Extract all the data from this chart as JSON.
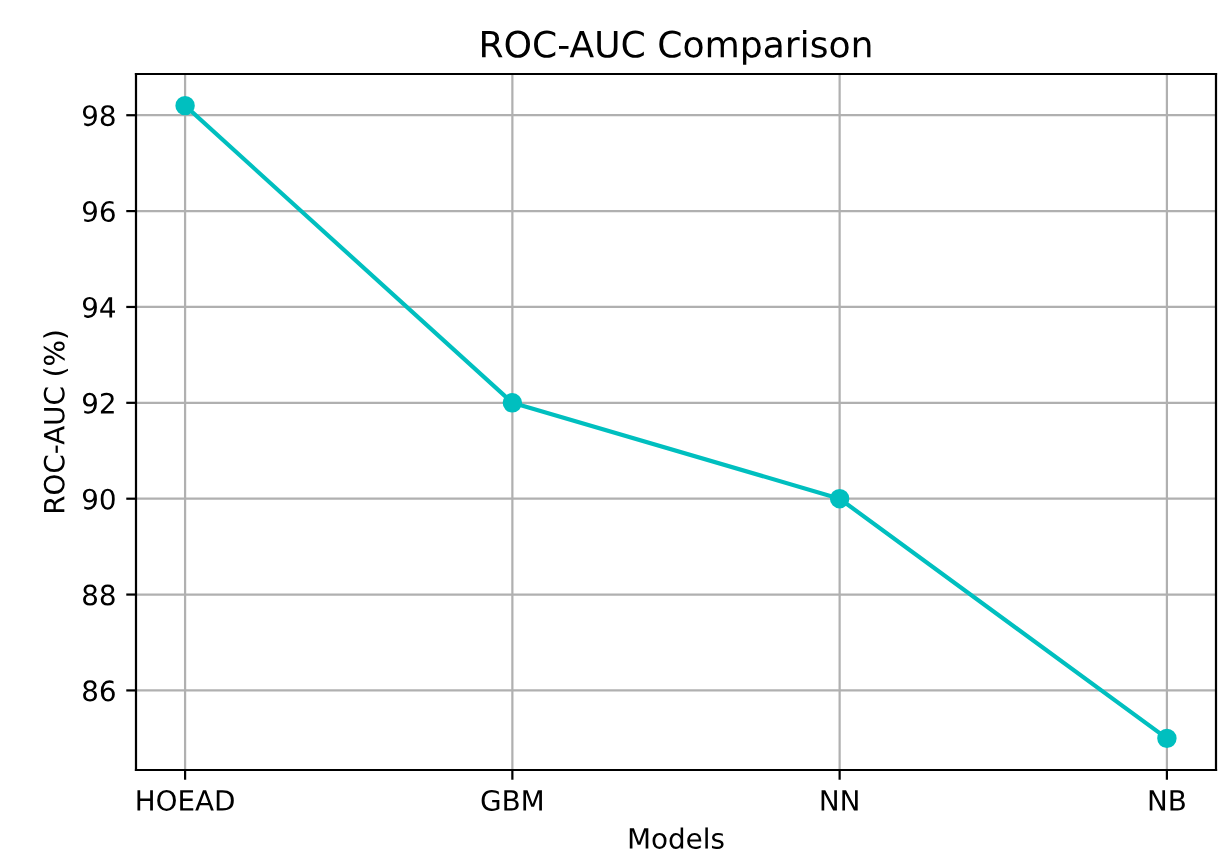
{
  "chart_data": {
    "type": "line",
    "title": "ROC-AUC Comparison",
    "xlabel": "Models",
    "ylabel": "ROC-AUC (%)",
    "categories": [
      "HOEAD",
      "GBM",
      "NN",
      "NB"
    ],
    "series": [
      {
        "color": "#00bfbf",
        "values": [
          98.2,
          92,
          90,
          85
        ]
      }
    ],
    "ylim": [
      84.34,
      98.86
    ],
    "yticks": [
      86,
      88,
      90,
      92,
      94,
      96,
      98
    ],
    "grid": true,
    "marker": "circle",
    "line_style": "solid"
  }
}
